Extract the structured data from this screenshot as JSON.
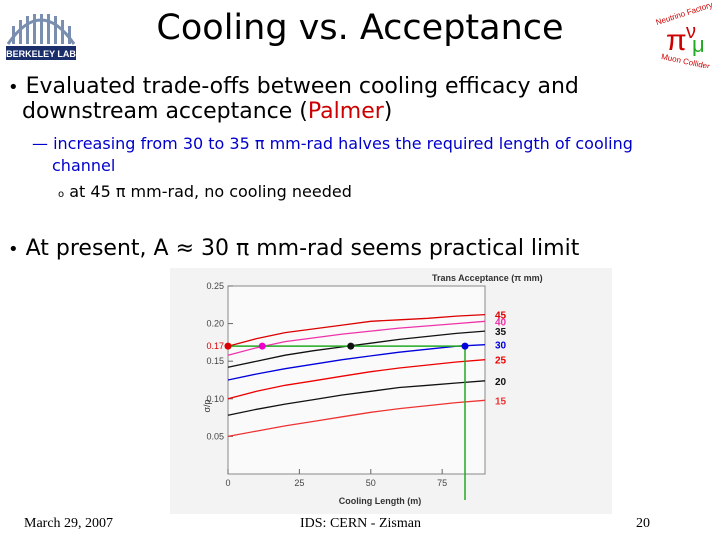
{
  "slide": {
    "title": "Cooling vs. Acceptance",
    "logo_left": "BERKELEY LAB",
    "logo_right_1": "Neutrino Factory",
    "logo_right_2": "Muon Collider",
    "bullet1_prefix": "Evaluated trade-offs between cooling efficacy and",
    "bullet1_line2_a": "downstream acceptance (",
    "bullet1_highlight": "Palmer",
    "bullet1_line2_b": ")",
    "sub1_line1": "increasing from 30 to 35 π mm-rad halves the required length of cooling",
    "sub1_line2": "channel",
    "subsub_marker": "o",
    "subsub1": "at 45 π mm-rad, no cooling needed",
    "bullet2": "At present, A ≈ 30 π mm-rad seems practical limit",
    "footer_date": "March 29, 2007",
    "footer_center": "IDS: CERN - Zisman",
    "footer_page": "20"
  },
  "colors": {
    "bullet_blue": "#0000cc",
    "highlight_red": "#cc0000",
    "guide_green": "#22aa22"
  },
  "chart_data": {
    "type": "line",
    "title": "Trans Acceptance (π mm)",
    "xlabel": "Cooling Length (m)",
    "ylabel": "σ/p",
    "xlim": [
      0,
      90
    ],
    "ylim": [
      0,
      0.25
    ],
    "x_ticks": [
      0,
      25,
      50,
      75
    ],
    "y_ticks": [
      0.05,
      0.1,
      0.15,
      0.2,
      0.25
    ],
    "y_tick_labels": [
      "0.05",
      "0.10",
      "0.15",
      "0.20",
      "0.25"
    ],
    "x_tick_labels": [
      "0",
      "25",
      "50",
      "75"
    ],
    "annotations": [
      {
        "text": "0.17",
        "y": 0.17
      }
    ],
    "threshold_y": 0.17,
    "threshold_x": 83,
    "markers": [
      {
        "series": "45",
        "x": 0,
        "y": 0.17,
        "color": "#dd0000"
      },
      {
        "series": "40",
        "x": 12,
        "y": 0.17,
        "color": "#ee00cc"
      },
      {
        "series": "35",
        "x": 43,
        "y": 0.17,
        "color": "#111111"
      },
      {
        "series": "30",
        "x": 83,
        "y": 0.17,
        "color": "#0000dd"
      }
    ],
    "series": [
      {
        "name": "45",
        "color": "#dd0000",
        "x": [
          0,
          10,
          20,
          30,
          40,
          50,
          60,
          70,
          80,
          90
        ],
        "y": [
          0.17,
          0.18,
          0.188,
          0.193,
          0.198,
          0.203,
          0.205,
          0.207,
          0.21,
          0.212
        ]
      },
      {
        "name": "40",
        "color": "#ee33aa",
        "x": [
          0,
          10,
          20,
          30,
          40,
          50,
          60,
          70,
          80,
          90
        ],
        "y": [
          0.158,
          0.168,
          0.176,
          0.181,
          0.186,
          0.19,
          0.194,
          0.197,
          0.2,
          0.203
        ]
      },
      {
        "name": "35",
        "color": "#111111",
        "x": [
          0,
          10,
          20,
          30,
          40,
          50,
          60,
          70,
          80,
          90
        ],
        "y": [
          0.142,
          0.15,
          0.158,
          0.164,
          0.169,
          0.174,
          0.179,
          0.183,
          0.187,
          0.19
        ]
      },
      {
        "name": "30",
        "color": "#0000dd",
        "x": [
          0,
          10,
          20,
          30,
          40,
          50,
          60,
          70,
          80,
          90
        ],
        "y": [
          0.125,
          0.133,
          0.14,
          0.146,
          0.152,
          0.157,
          0.162,
          0.166,
          0.17,
          0.172
        ]
      },
      {
        "name": "25",
        "color": "#ee0000",
        "x": [
          0,
          10,
          20,
          30,
          40,
          50,
          60,
          70,
          80,
          90
        ],
        "y": [
          0.1,
          0.11,
          0.118,
          0.124,
          0.13,
          0.136,
          0.141,
          0.145,
          0.149,
          0.152
        ]
      },
      {
        "name": "20",
        "color": "#111111",
        "x": [
          0,
          10,
          20,
          30,
          40,
          50,
          60,
          70,
          80,
          90
        ],
        "y": [
          0.078,
          0.086,
          0.093,
          0.099,
          0.105,
          0.11,
          0.115,
          0.118,
          0.121,
          0.124
        ]
      },
      {
        "name": "15",
        "color": "#ee3333",
        "x": [
          0,
          10,
          20,
          30,
          40,
          50,
          60,
          70,
          80,
          90
        ],
        "y": [
          0.05,
          0.057,
          0.064,
          0.07,
          0.076,
          0.082,
          0.087,
          0.091,
          0.095,
          0.098
        ]
      }
    ]
  }
}
